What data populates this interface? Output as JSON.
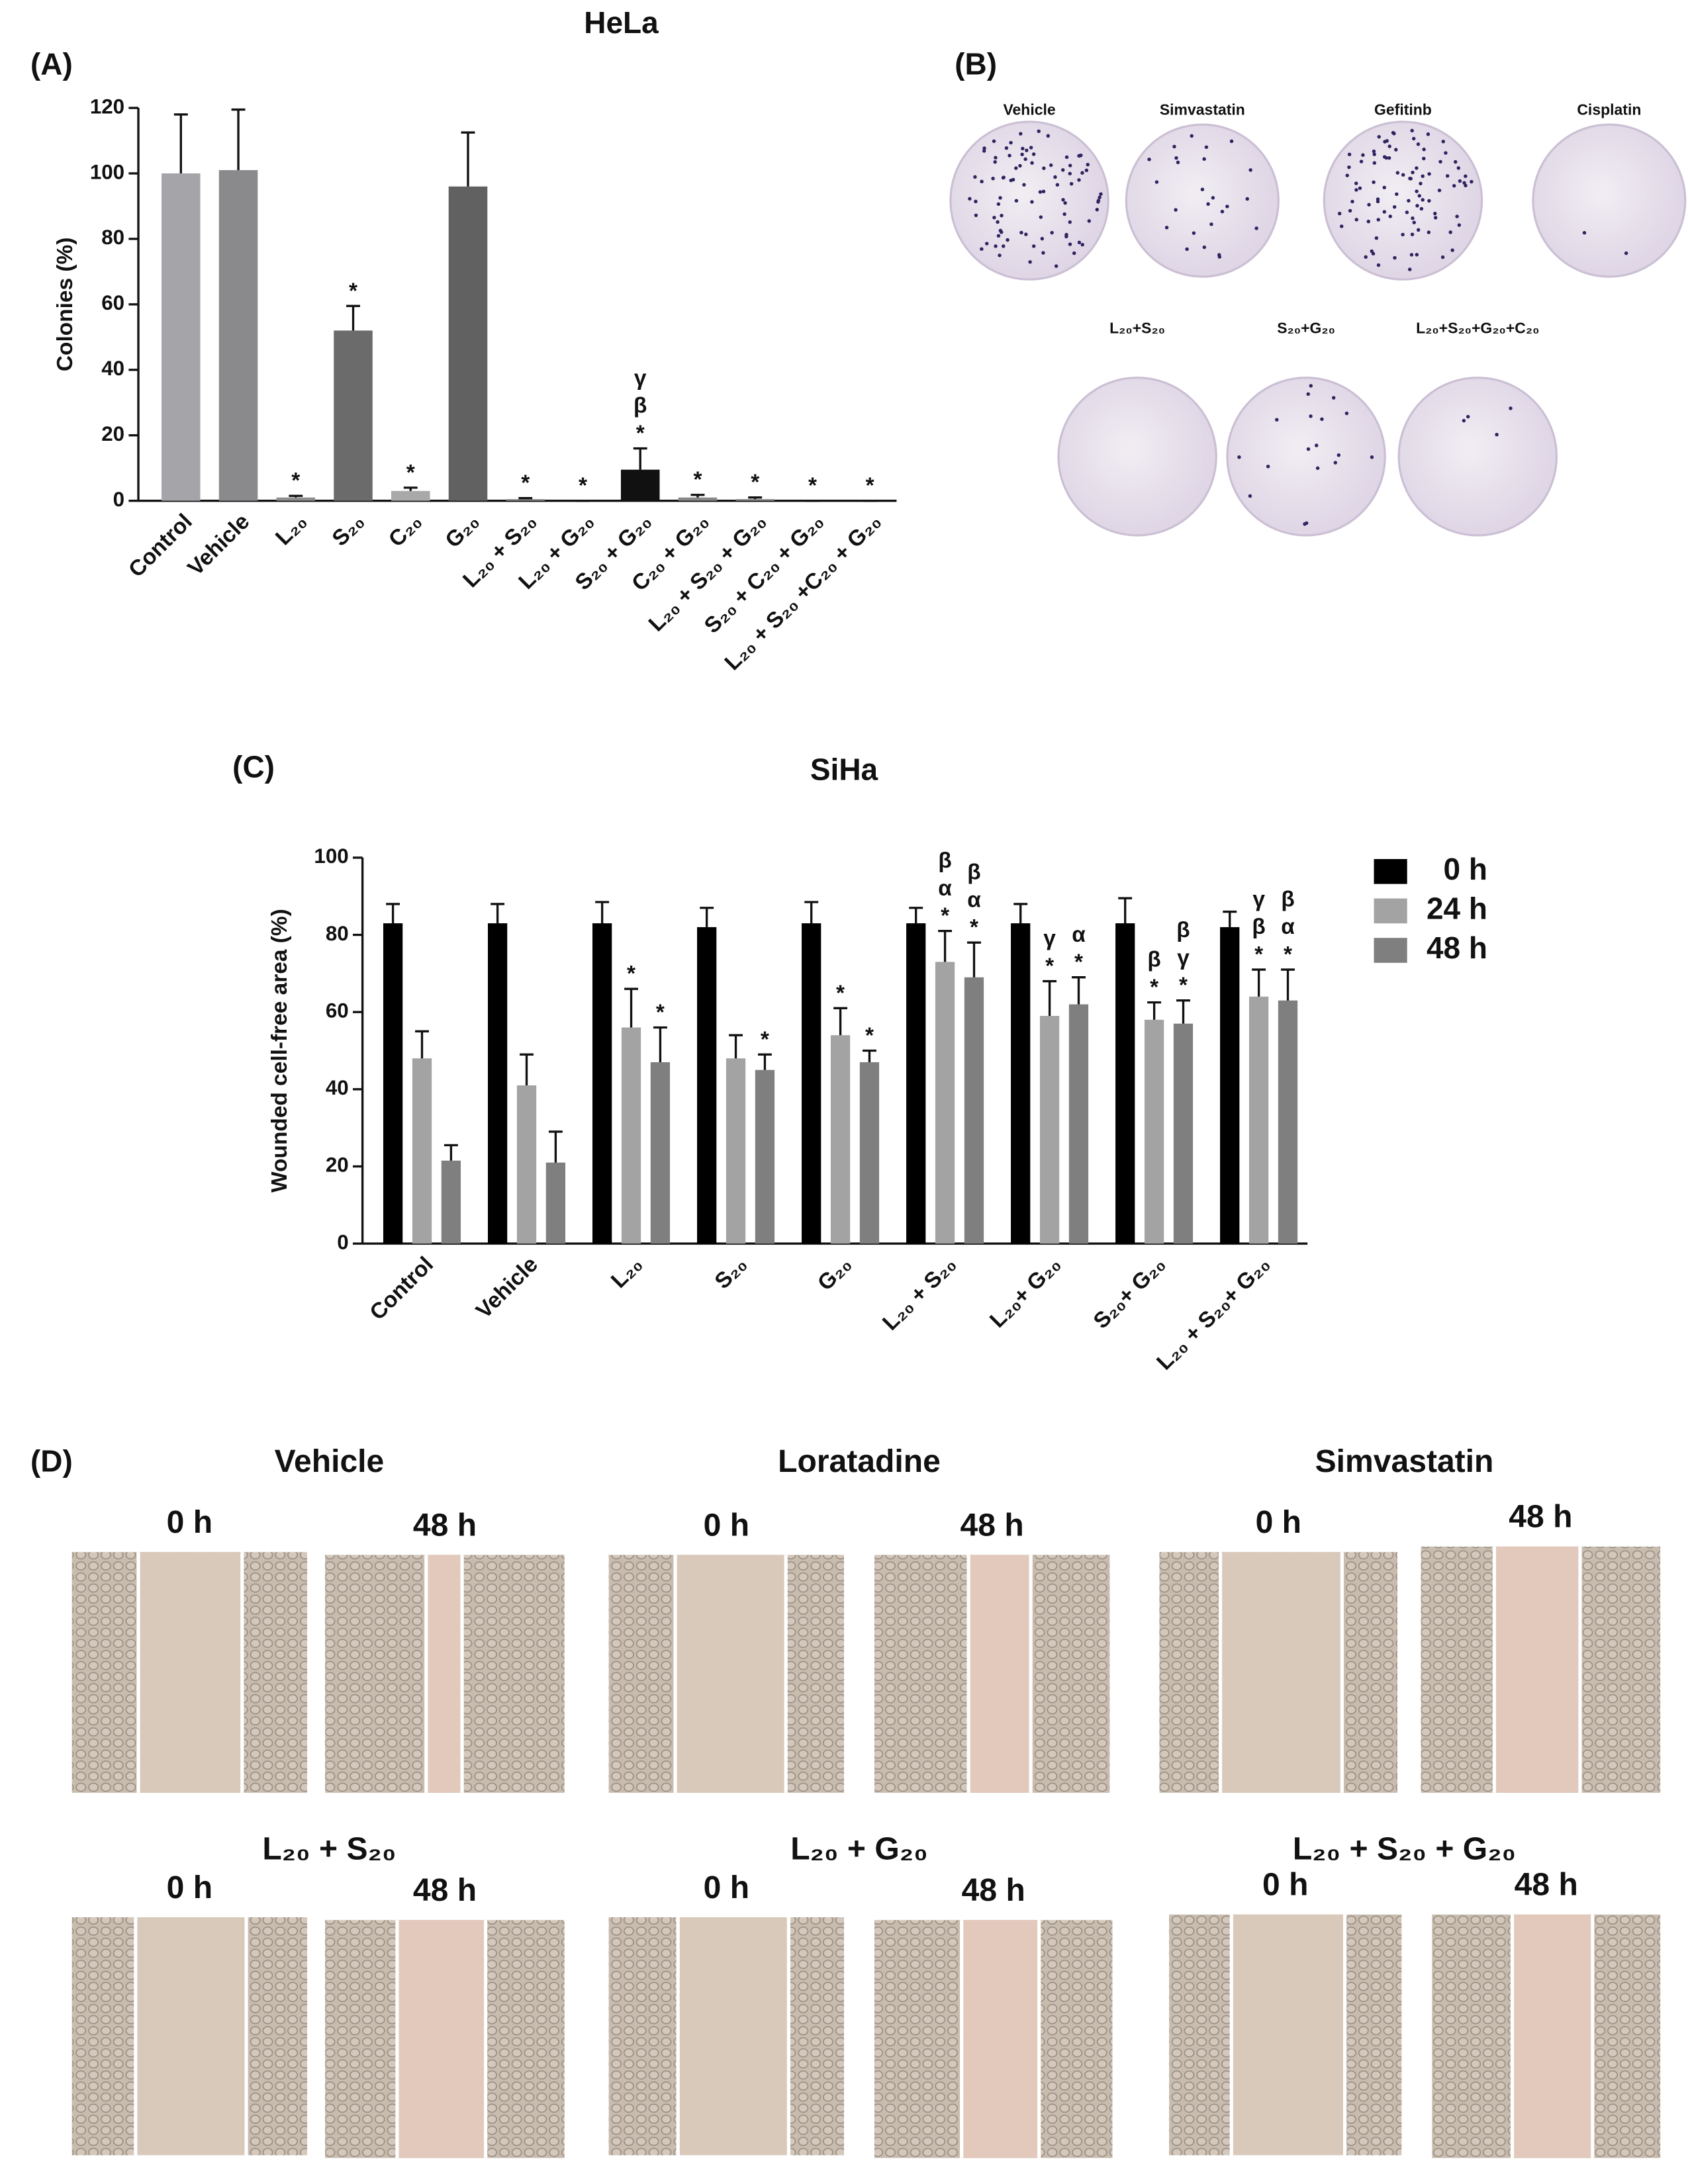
{
  "chart_data": [
    {
      "type": "bar",
      "panel": "(A)",
      "title": "HeLa",
      "y_label": "Colonies (%)",
      "categories": [
        "Control",
        "Vehicle",
        "L₂₀",
        "S₂₀",
        "C₂₀",
        "G₂₀",
        "L₂₀ + S₂₀",
        "L₂₀ + G₂₀",
        "S₂₀ + G₂₀",
        "C₂₀ + G₂₀",
        "L₂₀ + S₂₀ + G₂₀",
        "S₂₀ + C₂₀ + G₂₀",
        "L₂₀ + S₂₀ +C₂₀ + G₂₀"
      ],
      "values": [
        100,
        101,
        1,
        52,
        3,
        96,
        0.5,
        0,
        9.5,
        1,
        0.5,
        0,
        0
      ],
      "errors": [
        18,
        18.5,
        0.5,
        7.5,
        1,
        16.5,
        0.3,
        0,
        6.5,
        0.8,
        0.5,
        0,
        0
      ],
      "colors": [
        "#a5a5a9",
        "#8a8a8c",
        "#8e8e8e",
        "#6b6b6b",
        "#a9a9a9",
        "#616161",
        "#888888",
        "#888888",
        "#111111",
        "#888888",
        "#888888",
        "#888888",
        "#888888"
      ],
      "annotations": [
        null,
        null,
        [
          "*"
        ],
        [
          "*"
        ],
        [
          "*"
        ],
        null,
        [
          "*"
        ],
        [
          "*"
        ],
        [
          "γ",
          "β",
          "*"
        ],
        [
          "*"
        ],
        [
          "*"
        ],
        [
          "*"
        ],
        [
          "*"
        ]
      ],
      "ylim": [
        0,
        120
      ],
      "yticks": [
        0,
        20,
        40,
        60,
        80,
        100,
        120
      ]
    },
    {
      "type": "grouped_bar",
      "panel": "(C)",
      "title": "SiHa",
      "y_label": "Wounded cell-free area (%)",
      "categories": [
        "Control",
        "Vehicle",
        "L₂₀",
        "S₂₀",
        "G₂₀",
        "L₂₀ + S₂₀",
        "L₂₀+ G₂₀",
        "S₂₀+ G₂₀",
        "L₂₀ + S₂₀+ G₂₀"
      ],
      "series": [
        {
          "name": "0 h",
          "color": "#000000",
          "values": [
            83,
            83,
            83,
            82,
            83,
            83,
            83,
            83,
            82
          ],
          "errors": [
            5,
            5,
            5.5,
            5,
            5.5,
            4,
            5,
            6.5,
            4
          ],
          "annotations": [
            null,
            null,
            null,
            null,
            null,
            null,
            null,
            null,
            null
          ]
        },
        {
          "name": "24 h",
          "color": "#a3a3a3",
          "values": [
            48,
            41,
            56,
            48,
            54,
            73,
            59,
            58,
            64
          ],
          "errors": [
            7,
            8,
            10,
            6,
            7,
            8,
            9,
            4.5,
            7
          ],
          "annotations": [
            null,
            null,
            [
              "*"
            ],
            null,
            [
              "*"
            ],
            [
              "β",
              "α",
              "*"
            ],
            [
              "γ",
              "*"
            ],
            [
              "β",
              "*"
            ],
            [
              "γ",
              "β",
              "*"
            ]
          ]
        },
        {
          "name": "48 h",
          "color": "#7f7f7f",
          "values": [
            21.5,
            21,
            47,
            45,
            47,
            69,
            62,
            57,
            63
          ],
          "errors": [
            4,
            8,
            9,
            4,
            3,
            9,
            7,
            6,
            8
          ],
          "annotations": [
            null,
            null,
            [
              "*"
            ],
            [
              "*"
            ],
            [
              "*"
            ],
            [
              "β",
              "α",
              "*"
            ],
            [
              "α",
              "*"
            ],
            [
              "β",
              "γ",
              "*"
            ],
            [
              "β",
              "α",
              "*"
            ]
          ]
        }
      ],
      "ylim": [
        0,
        100
      ],
      "yticks": [
        0,
        20,
        40,
        60,
        80,
        100
      ],
      "legend": "upper right"
    }
  ],
  "panel_b": {
    "label": "(B)",
    "plates": [
      "Vehicle",
      "Simvastatin",
      "Gefitinb",
      "Cisplatin",
      "L₂₀+S₂₀",
      "S₂₀+G₂₀",
      "L₂₀+S₂₀+G₂₀+C₂₀"
    ]
  },
  "panel_d": {
    "label": "(D)",
    "groups": [
      {
        "title": "Vehicle",
        "times": [
          "0 h",
          "48 h"
        ]
      },
      {
        "title": "Loratadine",
        "times": [
          "0 h",
          "48 h"
        ]
      },
      {
        "title": "Simvastatin",
        "times": [
          "0 h",
          "48 h"
        ]
      },
      {
        "title": "L₂₀ + S₂₀",
        "times": [
          "0 h",
          "48 h"
        ]
      },
      {
        "title": "L₂₀ + G₂₀",
        "times": [
          "0 h",
          "48 h"
        ]
      },
      {
        "title": "L₂₀ + S₂₀ + G₂₀",
        "times": [
          "0 h",
          "48 h"
        ]
      }
    ]
  }
}
